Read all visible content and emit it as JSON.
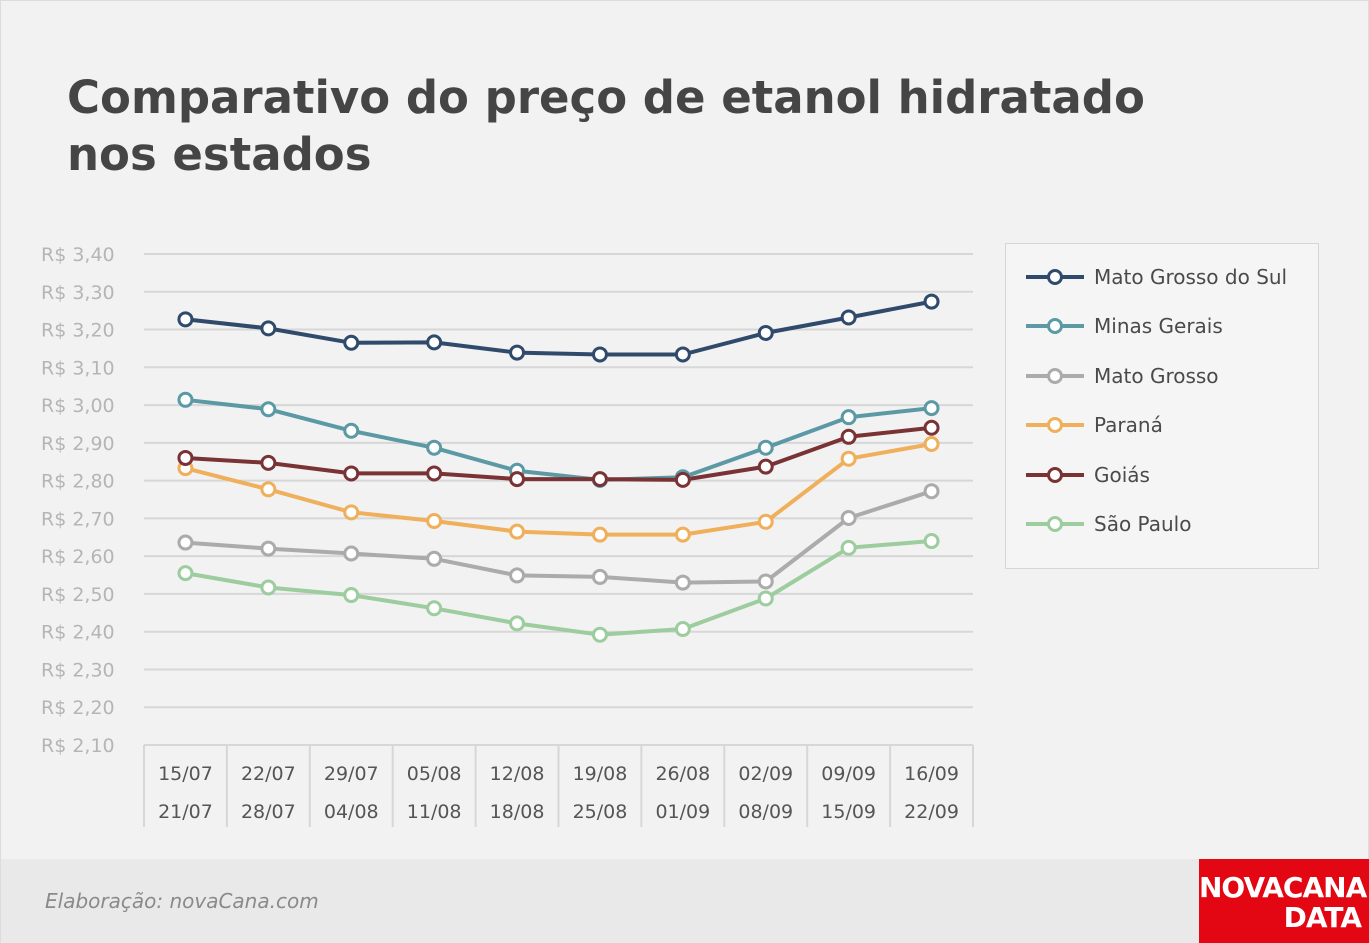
{
  "title": {
    "line1": "Comparativo do preço de etanol hidratado",
    "line2": "nos estados"
  },
  "footer": {
    "credit": "Elaboração: novaCana.com",
    "logo_line1": "NOVACANA",
    "logo_line2": "DATA"
  },
  "colors": {
    "background": "#f2f2f2",
    "grid": "#d7d7d7",
    "axis_text": "#b5b5b5",
    "title": "#454545"
  },
  "chart_data": {
    "type": "line",
    "title": "Comparativo do preço de etanol hidratado nos estados",
    "xlabel": "",
    "ylabel": "",
    "ylim": [
      2.1,
      3.4
    ],
    "y_step": 0.1,
    "y_ticks": [
      "R$ 3,40",
      "R$ 3,30",
      "R$ 3,20",
      "R$ 3,10",
      "R$ 3,00",
      "R$ 2,90",
      "R$ 2,80",
      "R$ 2,70",
      "R$ 2,60",
      "R$ 2,50",
      "R$ 2,40",
      "R$ 2,30",
      "R$ 2,20",
      "R$ 2,10"
    ],
    "grid": true,
    "legend_position": "right",
    "categories": [
      {
        "start": "15/07",
        "end": "21/07"
      },
      {
        "start": "22/07",
        "end": "28/07"
      },
      {
        "start": "29/07",
        "end": "04/08"
      },
      {
        "start": "05/08",
        "end": "11/08"
      },
      {
        "start": "12/08",
        "end": "18/08"
      },
      {
        "start": "19/08",
        "end": "25/08"
      },
      {
        "start": "26/08",
        "end": "01/09"
      },
      {
        "start": "02/09",
        "end": "08/09"
      },
      {
        "start": "09/09",
        "end": "15/09"
      },
      {
        "start": "16/09",
        "end": "22/09"
      }
    ],
    "series": [
      {
        "name": "Mato Grosso do Sul",
        "color": "#2f4a6b",
        "values": [
          3.227,
          3.203,
          3.165,
          3.166,
          3.139,
          3.134,
          3.134,
          3.191,
          3.232,
          3.274
        ]
      },
      {
        "name": "Minas Gerais",
        "color": "#5b9aa5",
        "values": [
          3.014,
          2.989,
          2.932,
          2.887,
          2.826,
          2.802,
          2.809,
          2.887,
          2.968,
          2.992
        ]
      },
      {
        "name": "Mato Grosso",
        "color": "#ababab",
        "values": [
          2.636,
          2.62,
          2.607,
          2.593,
          2.549,
          2.545,
          2.53,
          2.533,
          2.701,
          2.772
        ]
      },
      {
        "name": "Paraná",
        "color": "#efaf5b",
        "values": [
          2.833,
          2.777,
          2.716,
          2.693,
          2.665,
          2.657,
          2.657,
          2.691,
          2.858,
          2.897
        ]
      },
      {
        "name": "Goiás",
        "color": "#7a3334",
        "values": [
          2.86,
          2.847,
          2.819,
          2.819,
          2.804,
          2.804,
          2.802,
          2.837,
          2.916,
          2.94
        ]
      },
      {
        "name": "São Paulo",
        "color": "#9dcc9f",
        "values": [
          2.555,
          2.517,
          2.497,
          2.462,
          2.422,
          2.392,
          2.407,
          2.488,
          2.622,
          2.64
        ]
      }
    ]
  }
}
